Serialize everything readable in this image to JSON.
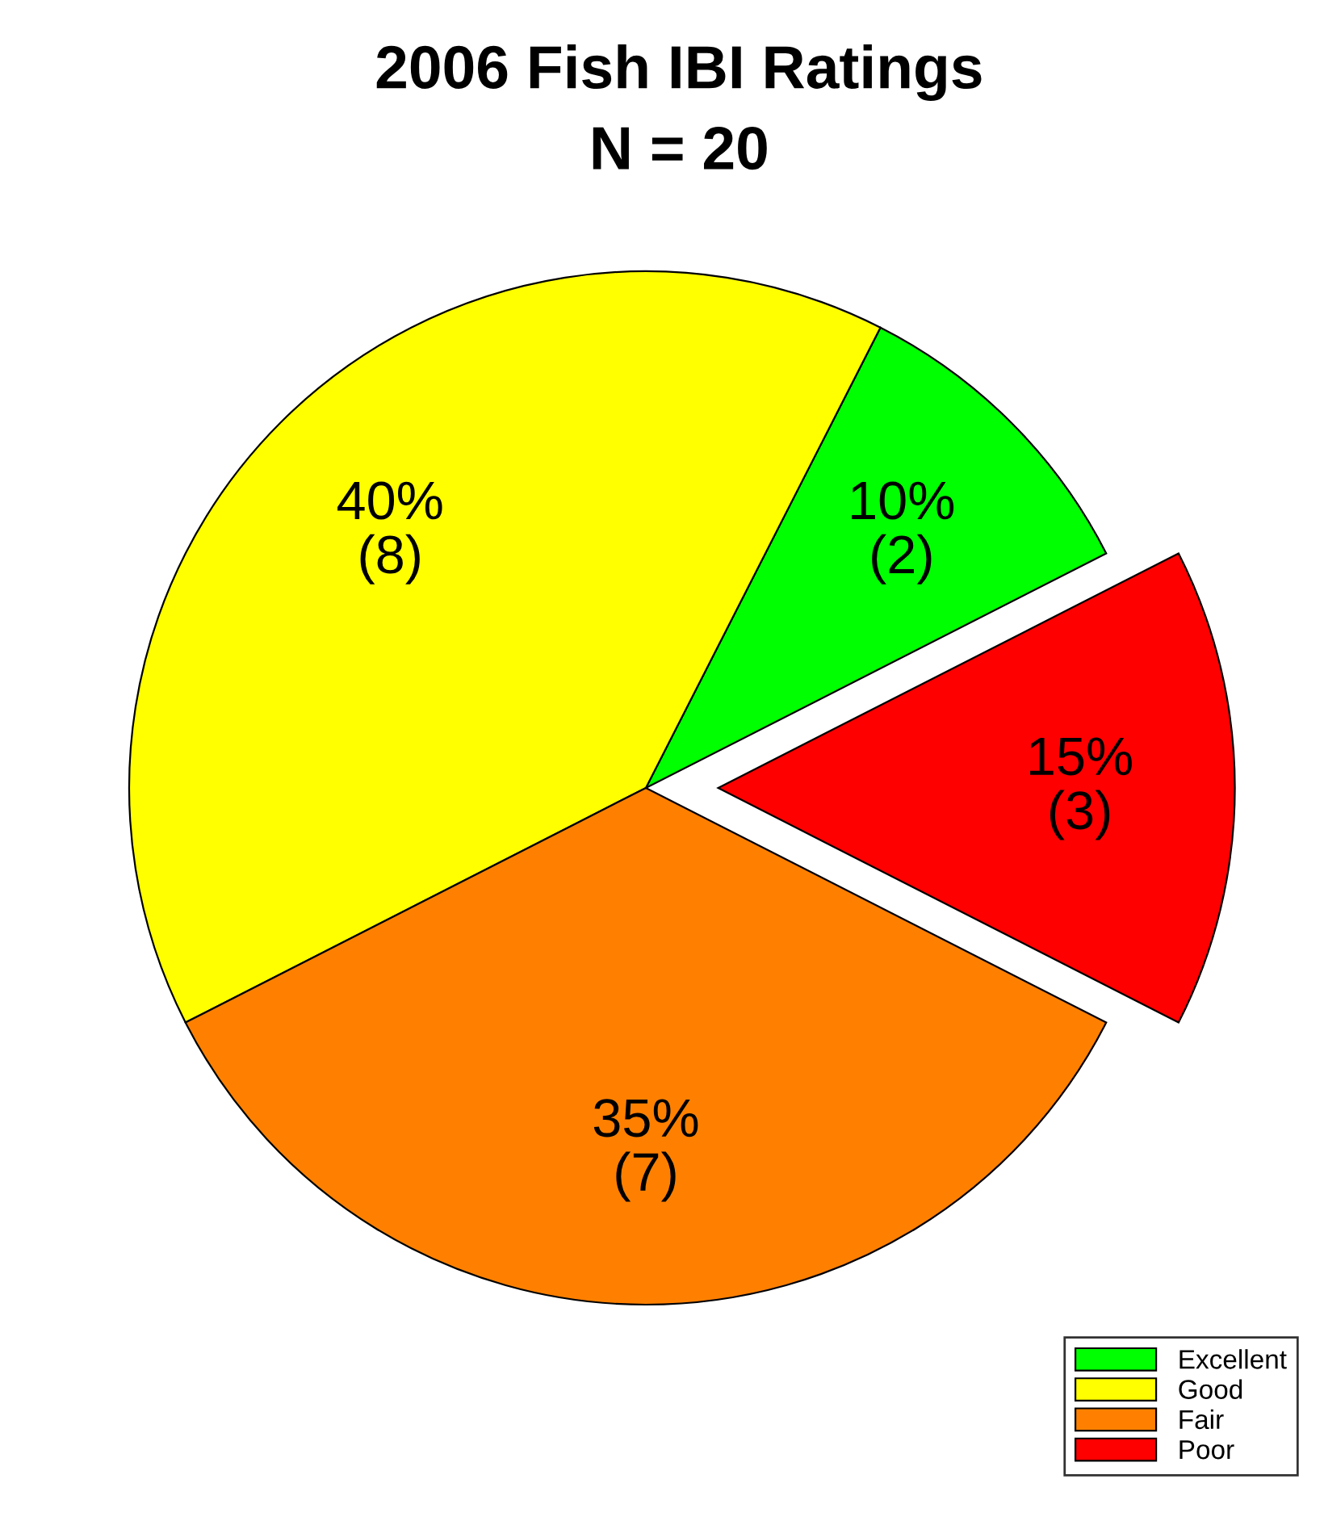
{
  "chart_data": {
    "type": "pie",
    "title": "2006 Fish IBI Ratings",
    "subtitle": "N = 20",
    "categories": [
      "Excellent",
      "Good",
      "Fair",
      "Poor"
    ],
    "values": [
      10,
      40,
      35,
      15
    ],
    "colors": [
      "#00ff00",
      "#ffff00",
      "#ff8000",
      "#ff0000"
    ],
    "value_labels": [
      "10%\n(2)",
      "40%\n(8)",
      "35%\n(7)",
      "15%\n(3)"
    ],
    "legend": "bottom right"
  }
}
